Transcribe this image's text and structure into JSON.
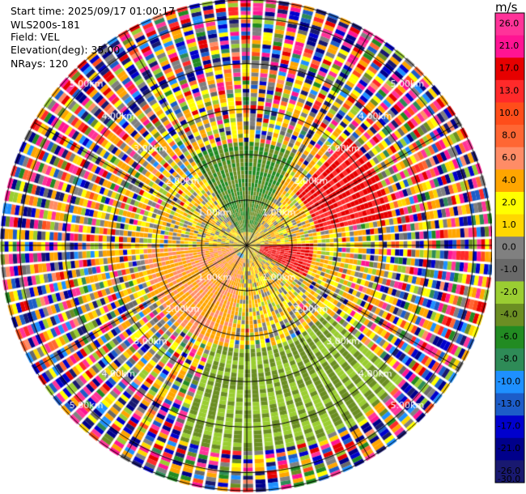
{
  "header": {
    "start_time": "Start time: 2025/09/17 01:00:17",
    "instrument": "WLS200s-181",
    "field": "Field: VEL",
    "elevation": "Elevation(deg): 35.00",
    "nrays": "NRays: 120"
  },
  "colorbar": {
    "unit": "m/s",
    "ticks": [
      "26.0",
      "21.0",
      "17.0",
      "13.0",
      "10.0",
      "8.0",
      "6.0",
      "4.0",
      "2.0",
      "1.0",
      "0.0",
      "-1.0",
      "-2.0",
      "-4.0",
      "-6.0",
      "-8.0",
      "-10.0",
      "-13.0",
      "-17.0",
      "-21.0",
      "-26.0",
      "-30.0"
    ],
    "colors": [
      "#ff3399",
      "#ff1493",
      "#e60000",
      "#ff2a2a",
      "#ff4d1a",
      "#ff6633",
      "#ff8c66",
      "#ffa500",
      "#ffff00",
      "#ffd700",
      "#808080",
      "#696969",
      "#9acd32",
      "#6b8e23",
      "#228b22",
      "#2e8b57",
      "#1e90ff",
      "#1c5cc8",
      "#0000cd",
      "#00008b",
      "#191970"
    ]
  },
  "chart_data": {
    "type": "heatmap",
    "projection": "polar PPI",
    "field": "VEL",
    "nrays": 120,
    "range_rings_km": [
      1.0,
      2.0,
      3.0,
      4.0,
      5.0
    ],
    "ring_labels": [
      "1.00km",
      "2.00km",
      "3.00km",
      "4.00km",
      "5.00km"
    ],
    "max_range_km": 5.4,
    "vmin": -30.0,
    "vmax": 26.0,
    "sectors": [
      {
        "azimuth_from": 330,
        "azimuth_to": 30,
        "range_from_km": 0.3,
        "range_to_km": 2.2,
        "dominant_value": -6.0
      },
      {
        "azimuth_from": 45,
        "azimuth_to": 80,
        "range_from_km": 1.5,
        "range_to_km": 3.2,
        "dominant_value": 13.0
      },
      {
        "azimuth_from": 90,
        "azimuth_to": 120,
        "range_from_km": 0.3,
        "range_to_km": 1.4,
        "dominant_value": 13.0
      },
      {
        "azimuth_from": 190,
        "azimuth_to": 270,
        "range_from_km": 0.3,
        "range_to_km": 2.2,
        "dominant_value": 4.0
      },
      {
        "azimuth_from": 200,
        "azimuth_to": 230,
        "range_from_km": 0.2,
        "range_to_km": 0.9,
        "dominant_value": -10.0
      },
      {
        "azimuth_from": 130,
        "azimuth_to": 200,
        "range_from_km": 2.2,
        "range_to_km": 4.5,
        "dominant_value": -4.0
      },
      {
        "azimuth_from": 0,
        "azimuth_to": 360,
        "range_from_km": 3.0,
        "range_to_km": 5.4,
        "dominant_value": 0.0
      }
    ]
  }
}
